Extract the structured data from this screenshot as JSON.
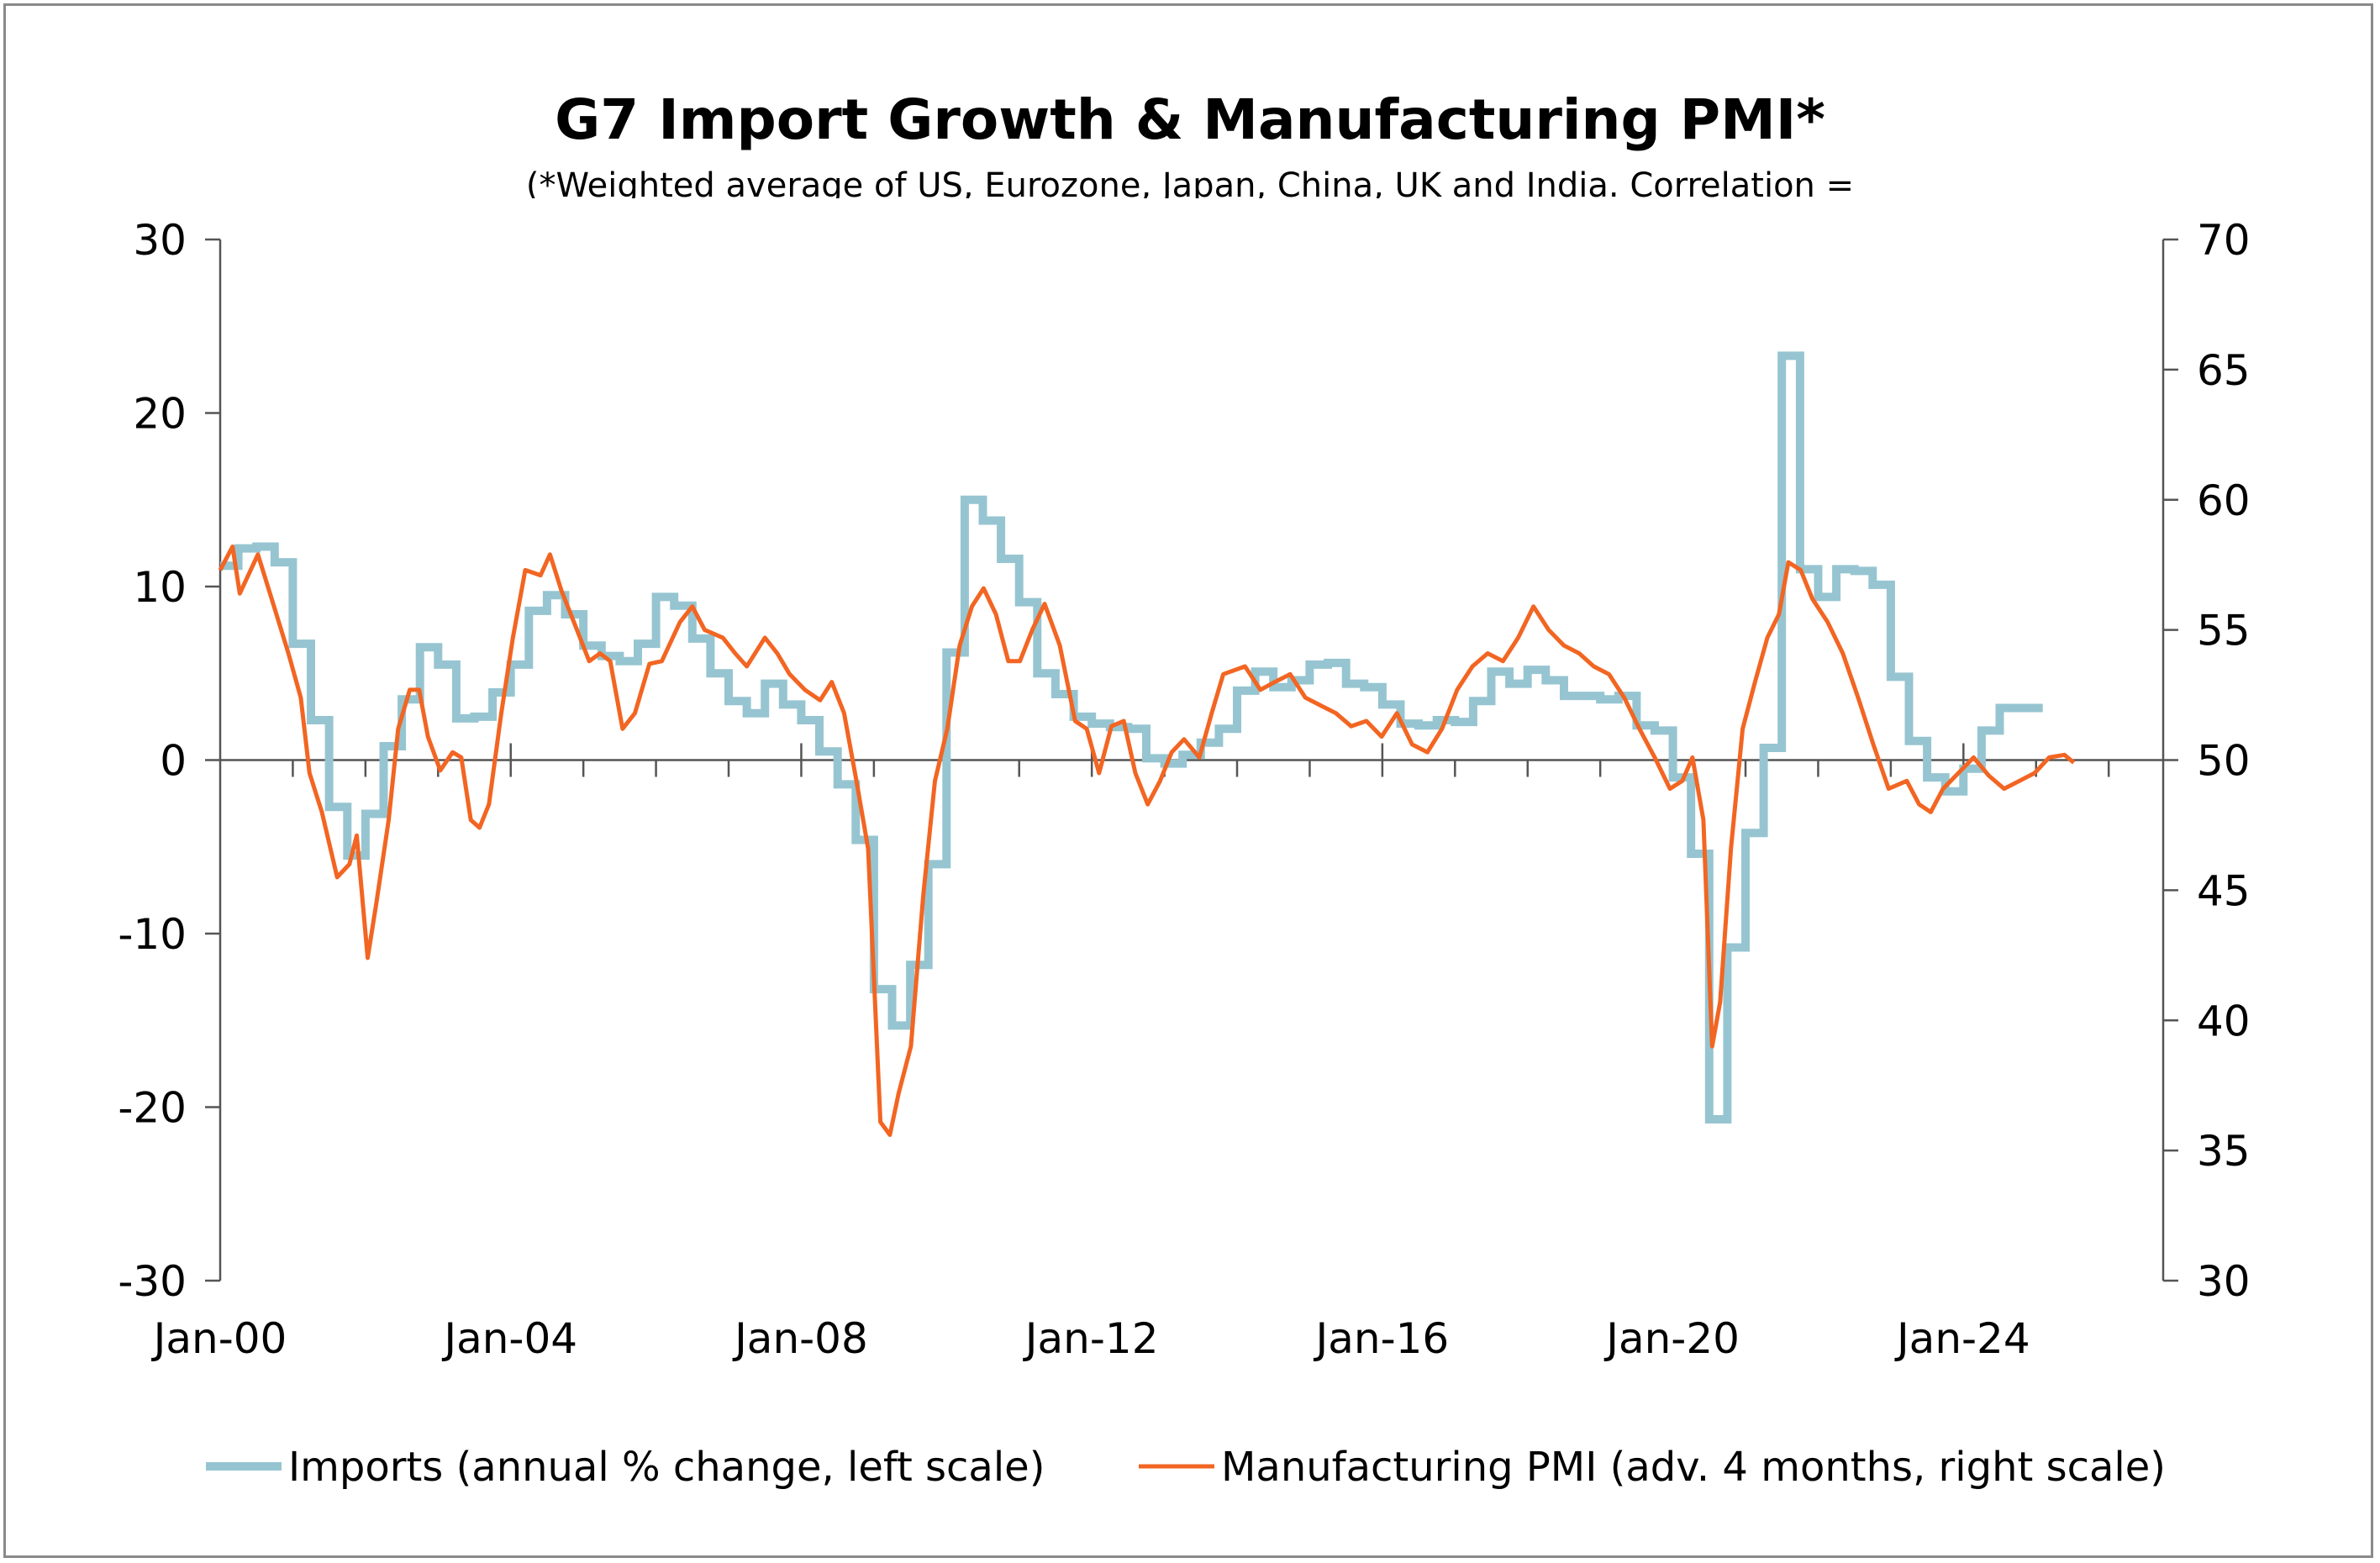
{
  "chart_data": {
    "type": "line",
    "title": "G7 Import Growth & Manufacturing PMI*",
    "subtitle": "(*Weighted average of US, Eurozone, Japan, China, UK and India. Correlation =",
    "x_ticks": [
      "Jan-00",
      "Jan-04",
      "Jan-08",
      "Jan-12",
      "Jan-16",
      "Jan-20",
      "Jan-24"
    ],
    "x_range": [
      2000,
      2026.75
    ],
    "y_left": {
      "range": [
        -30,
        30
      ],
      "ticks": [
        -30,
        -20,
        -10,
        0,
        10,
        20,
        30
      ]
    },
    "y_right": {
      "range": [
        30,
        70
      ],
      "ticks": [
        30,
        35,
        40,
        45,
        50,
        55,
        60,
        65,
        70
      ]
    },
    "grid": false,
    "legend_position": "bottom",
    "series": [
      {
        "name": "Imports (annual % change, left scale)",
        "axis": "left",
        "color": "#96c5d1",
        "frequency": "quarterly",
        "start": 2000.0,
        "values": [
          11.2,
          12.2,
          12.3,
          11.4,
          6.7,
          2.3,
          -2.7,
          -5.5,
          -3.1,
          0.8,
          3.5,
          6.5,
          5.5,
          2.4,
          2.5,
          3.9,
          5.5,
          8.6,
          9.5,
          8.4,
          6.6,
          6.0,
          5.7,
          6.7,
          9.4,
          8.9,
          7.0,
          5.0,
          3.4,
          2.7,
          4.4,
          3.2,
          2.3,
          0.5,
          -1.4,
          -4.6,
          -13.2,
          -15.3,
          -11.8,
          -6.0,
          6.2,
          15.0,
          13.8,
          11.6,
          9.1,
          5.0,
          3.8,
          2.5,
          2.1,
          1.9,
          1.8,
          0.1,
          -0.2,
          0.3,
          1.0,
          1.8,
          4.0,
          5.1,
          4.2,
          4.6,
          5.5,
          5.6,
          4.4,
          4.2,
          3.2,
          2.1,
          2.0,
          2.3,
          2.2,
          3.4,
          5.1,
          4.4,
          5.2,
          4.6,
          3.7,
          3.7,
          3.5,
          3.7,
          2.0,
          1.7,
          -1.0,
          -5.4,
          -20.7,
          -10.8,
          -4.2,
          0.7,
          23.3,
          11.0,
          9.4,
          11.0,
          10.9,
          10.1,
          4.8,
          1.1,
          -1.0,
          -1.8,
          -0.5,
          1.7,
          3.0,
          3.0,
          3.0
        ]
      },
      {
        "name": "Manufacturing PMI (adv. 4 months, right scale)",
        "axis": "right",
        "color": "#f26522",
        "points": [
          [
            2000.0,
            57.3
          ],
          [
            2000.17,
            58.2
          ],
          [
            2000.27,
            56.4
          ],
          [
            2000.52,
            57.9
          ],
          [
            2000.73,
            56.0
          ],
          [
            2000.94,
            54.1
          ],
          [
            2001.11,
            52.4
          ],
          [
            2001.23,
            49.5
          ],
          [
            2001.4,
            48.0
          ],
          [
            2001.61,
            45.5
          ],
          [
            2001.78,
            46.0
          ],
          [
            2001.88,
            47.1
          ],
          [
            2002.03,
            42.4
          ],
          [
            2002.15,
            44.5
          ],
          [
            2002.32,
            47.7
          ],
          [
            2002.45,
            51.2
          ],
          [
            2002.61,
            52.7
          ],
          [
            2002.74,
            52.7
          ],
          [
            2002.86,
            50.9
          ],
          [
            2003.03,
            49.6
          ],
          [
            2003.2,
            50.3
          ],
          [
            2003.32,
            50.1
          ],
          [
            2003.45,
            47.7
          ],
          [
            2003.57,
            47.4
          ],
          [
            2003.7,
            48.3
          ],
          [
            2003.87,
            51.8
          ],
          [
            2004.03,
            54.7
          ],
          [
            2004.2,
            57.3
          ],
          [
            2004.41,
            57.1
          ],
          [
            2004.54,
            57.9
          ],
          [
            2004.7,
            56.5
          ],
          [
            2004.87,
            55.3
          ],
          [
            2005.08,
            53.8
          ],
          [
            2005.23,
            54.1
          ],
          [
            2005.37,
            53.8
          ],
          [
            2005.54,
            51.2
          ],
          [
            2005.71,
            51.8
          ],
          [
            2005.91,
            53.7
          ],
          [
            2006.08,
            53.8
          ],
          [
            2006.33,
            55.3
          ],
          [
            2006.5,
            55.9
          ],
          [
            2006.67,
            55.0
          ],
          [
            2006.92,
            54.7
          ],
          [
            2007.09,
            54.1
          ],
          [
            2007.25,
            53.6
          ],
          [
            2007.5,
            54.7
          ],
          [
            2007.67,
            54.1
          ],
          [
            2007.84,
            53.3
          ],
          [
            2008.05,
            52.7
          ],
          [
            2008.26,
            52.3
          ],
          [
            2008.42,
            53.0
          ],
          [
            2008.59,
            51.8
          ],
          [
            2008.76,
            49.2
          ],
          [
            2008.92,
            46.6
          ],
          [
            2009.09,
            36.1
          ],
          [
            2009.22,
            35.6
          ],
          [
            2009.34,
            37.2
          ],
          [
            2009.51,
            39.0
          ],
          [
            2009.68,
            44.8
          ],
          [
            2009.84,
            49.2
          ],
          [
            2010.01,
            51.2
          ],
          [
            2010.18,
            54.4
          ],
          [
            2010.35,
            55.9
          ],
          [
            2010.51,
            56.6
          ],
          [
            2010.68,
            55.6
          ],
          [
            2010.85,
            53.8
          ],
          [
            2011.01,
            53.8
          ],
          [
            2011.18,
            55.0
          ],
          [
            2011.35,
            56.0
          ],
          [
            2011.56,
            54.4
          ],
          [
            2011.77,
            51.5
          ],
          [
            2011.93,
            51.2
          ],
          [
            2012.1,
            49.5
          ],
          [
            2012.27,
            51.3
          ],
          [
            2012.44,
            51.5
          ],
          [
            2012.6,
            49.5
          ],
          [
            2012.77,
            48.3
          ],
          [
            2012.94,
            49.2
          ],
          [
            2013.1,
            50.3
          ],
          [
            2013.27,
            50.8
          ],
          [
            2013.48,
            50.1
          ],
          [
            2013.65,
            51.8
          ],
          [
            2013.81,
            53.3
          ],
          [
            2014.11,
            53.6
          ],
          [
            2014.32,
            52.7
          ],
          [
            2014.52,
            53.0
          ],
          [
            2014.73,
            53.3
          ],
          [
            2014.94,
            52.4
          ],
          [
            2015.15,
            52.1
          ],
          [
            2015.36,
            51.8
          ],
          [
            2015.57,
            51.3
          ],
          [
            2015.78,
            51.5
          ],
          [
            2015.99,
            50.9
          ],
          [
            2016.2,
            51.8
          ],
          [
            2016.41,
            50.6
          ],
          [
            2016.62,
            50.3
          ],
          [
            2016.82,
            51.2
          ],
          [
            2017.03,
            52.7
          ],
          [
            2017.24,
            53.6
          ],
          [
            2017.45,
            54.1
          ],
          [
            2017.66,
            53.8
          ],
          [
            2017.87,
            54.7
          ],
          [
            2018.08,
            55.9
          ],
          [
            2018.29,
            55.0
          ],
          [
            2018.5,
            54.4
          ],
          [
            2018.71,
            54.1
          ],
          [
            2018.91,
            53.6
          ],
          [
            2019.12,
            53.3
          ],
          [
            2019.33,
            52.4
          ],
          [
            2019.54,
            51.2
          ],
          [
            2019.75,
            50.1
          ],
          [
            2019.96,
            48.9
          ],
          [
            2020.13,
            49.2
          ],
          [
            2020.27,
            50.1
          ],
          [
            2020.42,
            47.7
          ],
          [
            2020.54,
            39.0
          ],
          [
            2020.65,
            40.7
          ],
          [
            2020.8,
            46.6
          ],
          [
            2020.96,
            51.2
          ],
          [
            2021.13,
            53.0
          ],
          [
            2021.3,
            54.7
          ],
          [
            2021.46,
            55.6
          ],
          [
            2021.59,
            57.6
          ],
          [
            2021.76,
            57.3
          ],
          [
            2021.92,
            56.2
          ],
          [
            2022.13,
            55.3
          ],
          [
            2022.34,
            54.1
          ],
          [
            2022.55,
            52.4
          ],
          [
            2022.76,
            50.6
          ],
          [
            2022.97,
            48.9
          ],
          [
            2023.22,
            49.2
          ],
          [
            2023.39,
            48.3
          ],
          [
            2023.55,
            48.0
          ],
          [
            2023.72,
            48.9
          ],
          [
            2023.93,
            49.5
          ],
          [
            2024.14,
            50.1
          ],
          [
            2024.35,
            49.4
          ],
          [
            2024.56,
            48.9
          ],
          [
            2024.77,
            49.2
          ],
          [
            2024.98,
            49.5
          ],
          [
            2025.18,
            50.1
          ],
          [
            2025.39,
            50.2
          ],
          [
            2025.52,
            49.9
          ]
        ]
      }
    ]
  }
}
